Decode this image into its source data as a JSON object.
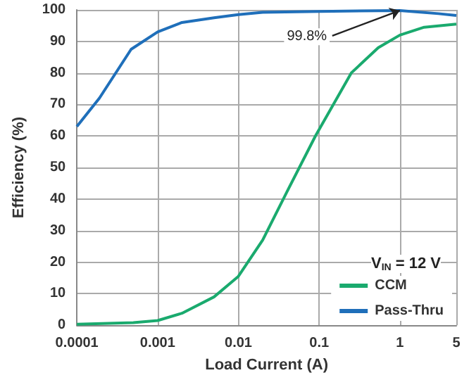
{
  "chart_data": {
    "type": "line",
    "xlabel": "Load Current (A)",
    "ylabel": "Efficiency (%)",
    "legend_title": "V$_{IN}$ = 12 V",
    "log": "x",
    "grid": true,
    "legend": "bottom right",
    "marker": "none",
    "line_style": "solid",
    "xlim": [
      0.0001,
      5
    ],
    "xticks": [
      0.0001,
      0.001,
      0.01,
      0.1,
      1,
      5
    ],
    "ylim": [
      0,
      100
    ],
    "yticks": [
      0,
      10,
      20,
      30,
      40,
      50,
      60,
      70,
      80,
      90,
      100
    ],
    "series": [
      {
        "name": "CCM",
        "color": "#1aaa6e",
        "x": [
          0.0001,
          0.0005,
          0.001,
          0.002,
          0.005,
          0.01,
          0.02,
          0.042,
          0.09,
          0.25,
          0.54,
          1,
          2,
          5
        ],
        "values": [
          0.3,
          0.8,
          1.5,
          3.8,
          9,
          15.5,
          27,
          43.4,
          60,
          80,
          88,
          92,
          94.5,
          95.5
        ]
      },
      {
        "name": "Pass-Thru",
        "color": "#1f6fba",
        "x": [
          0.0001,
          0.00019,
          0.00047,
          0.001,
          0.002,
          0.005,
          0.01,
          0.02,
          0.1,
          1,
          3,
          5
        ],
        "values": [
          63,
          72,
          87.5,
          93,
          96,
          97.5,
          98.5,
          99.2,
          99.5,
          99.8,
          98.8,
          98.2
        ]
      }
    ],
    "annotations": [
      {
        "text": "99.8%",
        "x": 1,
        "y": 99.8
      }
    ]
  }
}
